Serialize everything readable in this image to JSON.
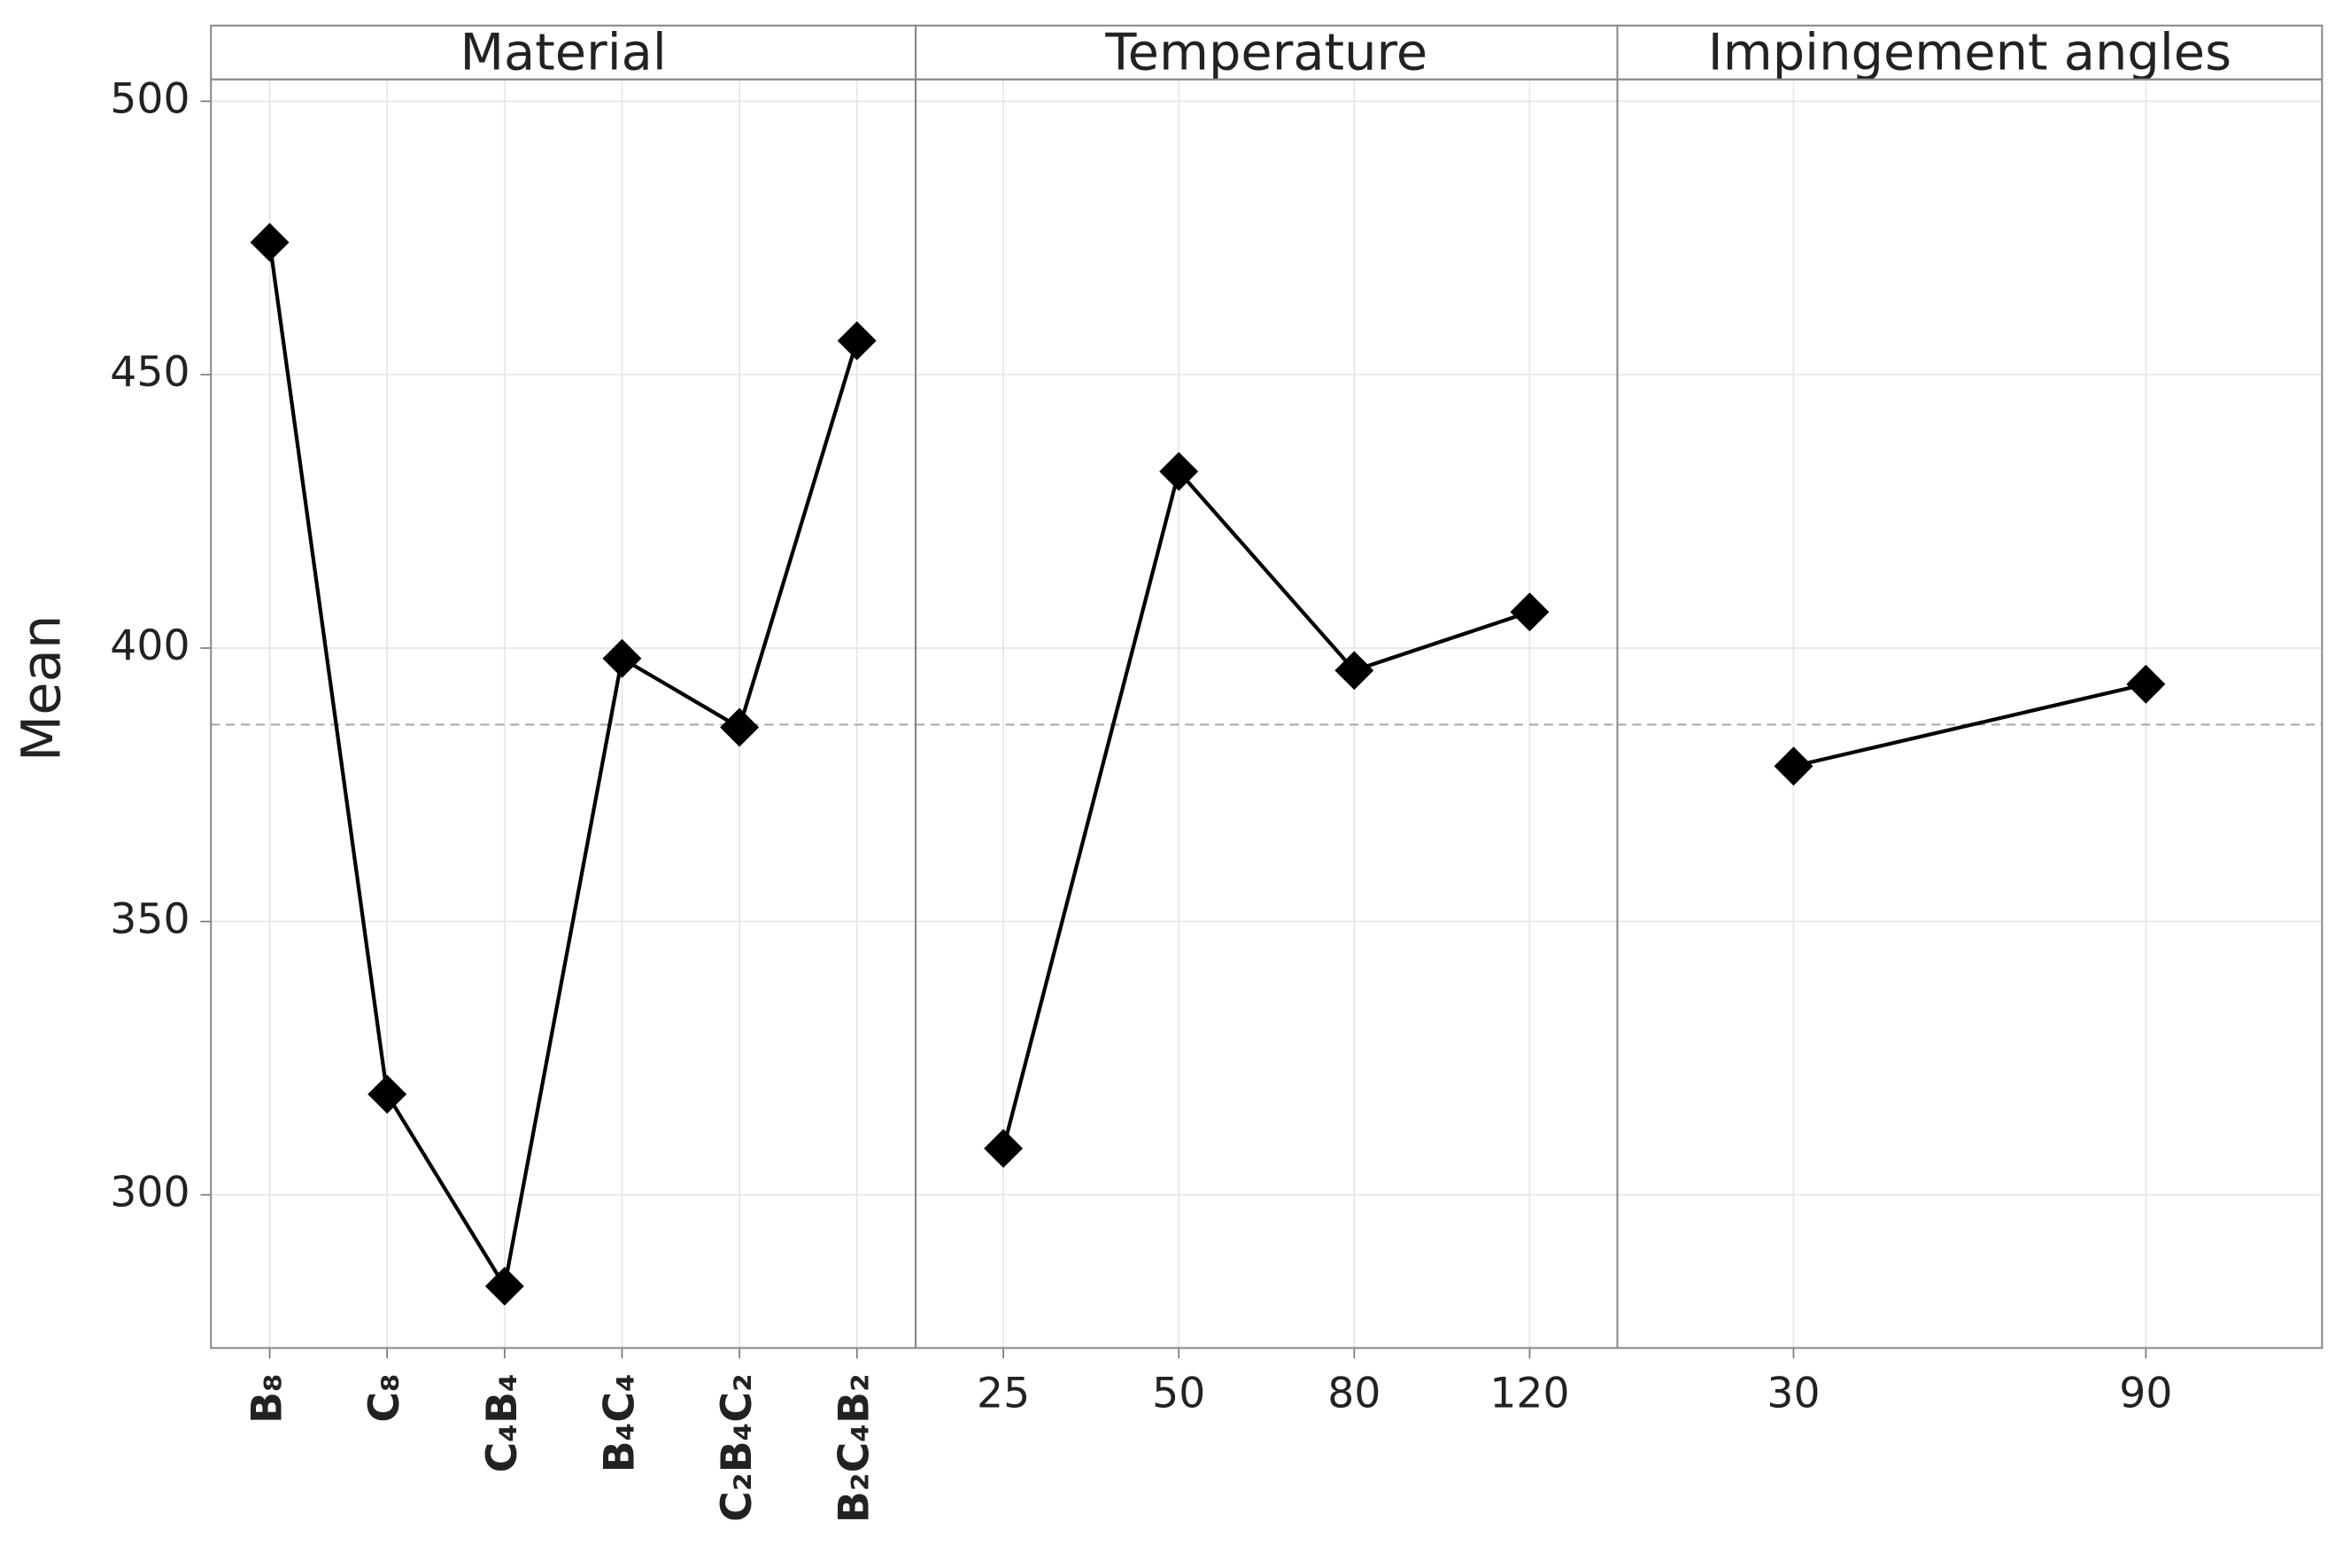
{
  "chart_data": {
    "type": "line",
    "ylabel": "Mean",
    "ylim": [
      272,
      504
    ],
    "yticks": [
      300,
      350,
      400,
      450,
      500
    ],
    "grid": true,
    "reference_line": 386,
    "color": "#000000",
    "panels": [
      {
        "title": "Material",
        "categories": [
          "B₈",
          "C₈",
          "C₄B₄",
          "B₄C₄",
          "C₂B₄C₂",
          "B₂C₄B₂"
        ],
        "values": [
          474.2,
          318.4,
          283.3,
          398.1,
          385.5,
          456.2
        ]
      },
      {
        "title": "Temperature",
        "categories": [
          "25",
          "50",
          "80",
          "120"
        ],
        "values": [
          308.5,
          432.3,
          395.9,
          406.6
        ]
      },
      {
        "title": "Impingement angles",
        "categories": [
          "30",
          "90"
        ],
        "values": [
          378.4,
          393.4
        ]
      }
    ]
  }
}
